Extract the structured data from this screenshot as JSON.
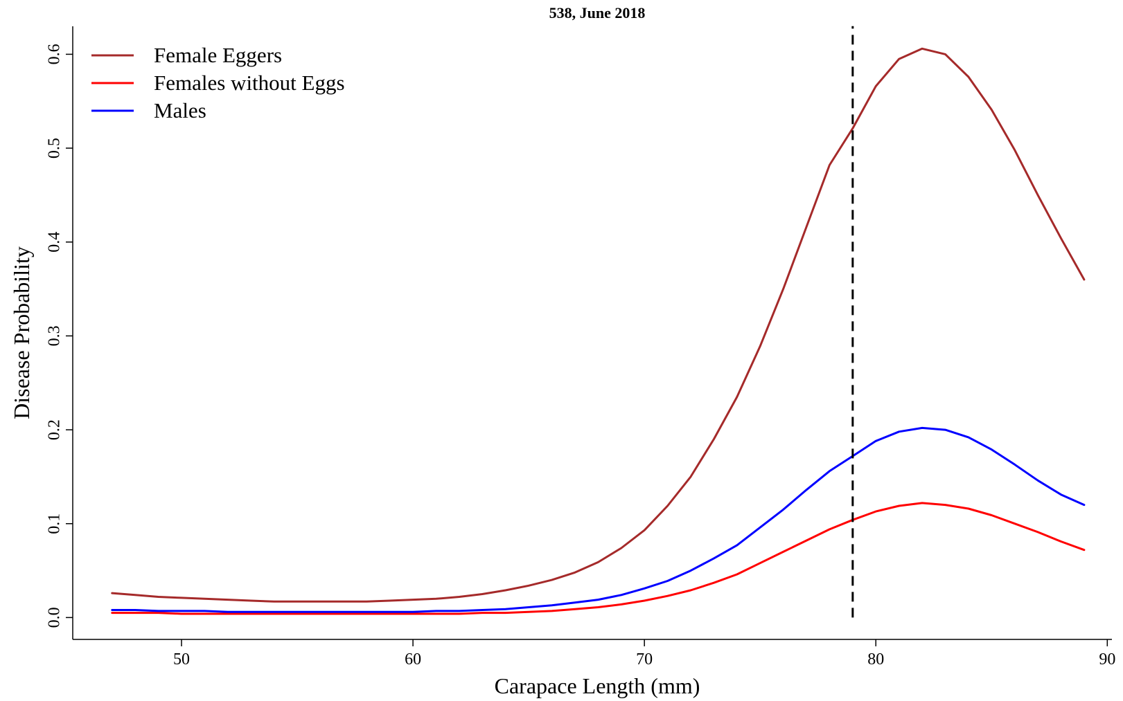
{
  "chart_data": {
    "type": "line",
    "title": "538, June 2018",
    "xlabel": "Carapace Length (mm)",
    "ylabel": "Disease Probability",
    "xlim": [
      45.3,
      90.2
    ],
    "ylim": [
      -0.0233,
      0.6298
    ],
    "xticks": [
      50,
      60,
      70,
      80,
      90
    ],
    "yticks": [
      0.0,
      0.1,
      0.2,
      0.3,
      0.4,
      0.5,
      0.6
    ],
    "ytick_labels": [
      "0.0",
      "0.1",
      "0.2",
      "0.3",
      "0.4",
      "0.5",
      "0.6"
    ],
    "legend_position": "top-left",
    "reference_line": {
      "x": 79,
      "y_range": [
        0.0,
        0.63
      ],
      "style": "dashed",
      "color": "#000000"
    },
    "x": [
      47,
      48,
      49,
      50,
      51,
      52,
      53,
      54,
      55,
      56,
      57,
      58,
      59,
      60,
      61,
      62,
      63,
      64,
      65,
      66,
      67,
      68,
      69,
      70,
      71,
      72,
      73,
      74,
      75,
      76,
      77,
      78,
      79,
      80,
      81,
      82,
      83,
      84,
      85,
      86,
      87,
      88,
      89
    ],
    "series": [
      {
        "name": "Female Eggers",
        "color": "#a52a2a",
        "values": [
          0.026,
          0.024,
          0.022,
          0.021,
          0.02,
          0.019,
          0.018,
          0.017,
          0.017,
          0.017,
          0.017,
          0.017,
          0.018,
          0.019,
          0.02,
          0.022,
          0.025,
          0.029,
          0.034,
          0.04,
          0.048,
          0.059,
          0.074,
          0.093,
          0.119,
          0.15,
          0.19,
          0.235,
          0.289,
          0.35,
          0.416,
          0.482,
          0.521,
          0.566,
          0.595,
          0.606,
          0.6,
          0.576,
          0.541,
          0.498,
          0.45,
          0.404,
          0.36
        ]
      },
      {
        "name": "Females without Eggs",
        "color": "#ff0000",
        "values": [
          0.005,
          0.005,
          0.005,
          0.004,
          0.004,
          0.004,
          0.004,
          0.004,
          0.004,
          0.004,
          0.004,
          0.004,
          0.004,
          0.004,
          0.004,
          0.004,
          0.005,
          0.005,
          0.006,
          0.007,
          0.009,
          0.011,
          0.014,
          0.018,
          0.023,
          0.029,
          0.037,
          0.046,
          0.058,
          0.07,
          0.082,
          0.094,
          0.104,
          0.113,
          0.119,
          0.122,
          0.12,
          0.116,
          0.109,
          0.1,
          0.091,
          0.081,
          0.072
        ]
      },
      {
        "name": "Males",
        "color": "#0000ff",
        "values": [
          0.008,
          0.008,
          0.007,
          0.007,
          0.007,
          0.006,
          0.006,
          0.006,
          0.006,
          0.006,
          0.006,
          0.006,
          0.006,
          0.006,
          0.007,
          0.007,
          0.008,
          0.009,
          0.011,
          0.013,
          0.016,
          0.019,
          0.024,
          0.031,
          0.039,
          0.05,
          0.063,
          0.077,
          0.096,
          0.115,
          0.136,
          0.156,
          0.172,
          0.188,
          0.198,
          0.202,
          0.2,
          0.192,
          0.179,
          0.163,
          0.146,
          0.131,
          0.12
        ]
      }
    ]
  }
}
